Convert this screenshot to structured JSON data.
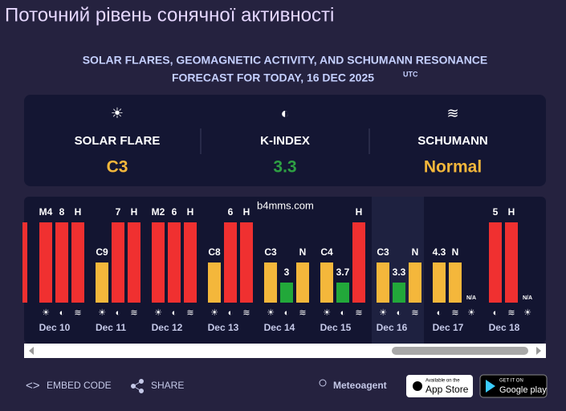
{
  "header": {
    "title": "Поточний рівень сонячної активності",
    "subtitle_line1": "SOLAR FLARES, GEOMAGNETIC ACTIVITY, AND SCHUMANN RESONANCE",
    "subtitle_line2": "FORECAST FOR TODAY, 16 DEC 2025",
    "subtitle_unit": "UTC"
  },
  "summary": [
    {
      "icon": "☀",
      "label": "SOLAR FLARE",
      "value": "C3",
      "color": "#f4b73b"
    },
    {
      "icon": "◐",
      "label": "K-INDEX",
      "value": "3.3",
      "color": "#2ea043"
    },
    {
      "icon": "≋",
      "label": "SCHUMANN",
      "value": "Normal",
      "color": "#f4b73b"
    }
  ],
  "watermark": "b4mms.com",
  "days": [
    {
      "date": "Dec 10",
      "bars": [
        {
          "label": "M4",
          "icon": "☀",
          "color": "#f03030"
        },
        {
          "label": "8",
          "icon": "◐",
          "color": "#f03030"
        },
        {
          "label": "H",
          "icon": "≋",
          "color": "#f03030"
        }
      ]
    },
    {
      "date": "Dec 11",
      "bars": [
        {
          "label": "C9",
          "icon": "☀",
          "color": "#f4b73b"
        },
        {
          "label": "7",
          "icon": "◐",
          "color": "#f03030"
        },
        {
          "label": "H",
          "icon": "≋",
          "color": "#f03030"
        }
      ]
    },
    {
      "date": "Dec 12",
      "bars": [
        {
          "label": "M2",
          "icon": "☀",
          "color": "#f03030"
        },
        {
          "label": "6",
          "icon": "◐",
          "color": "#f03030"
        },
        {
          "label": "H",
          "icon": "≋",
          "color": "#f03030"
        }
      ]
    },
    {
      "date": "Dec 13",
      "bars": [
        {
          "label": "C8",
          "icon": "☀",
          "color": "#f4b73b"
        },
        {
          "label": "6",
          "icon": "◐",
          "color": "#f03030"
        },
        {
          "label": "H",
          "icon": "≋",
          "color": "#f03030"
        }
      ]
    },
    {
      "date": "Dec 14",
      "bars": [
        {
          "label": "C3",
          "icon": "☀",
          "color": "#f4b73b"
        },
        {
          "label": "3",
          "icon": "◐",
          "color": "#22a83a"
        },
        {
          "label": "N",
          "icon": "≋",
          "color": "#f4b73b"
        }
      ]
    },
    {
      "date": "Dec 15",
      "bars": [
        {
          "label": "C4",
          "icon": "☀",
          "color": "#f4b73b"
        },
        {
          "label": "3.7",
          "icon": "◐",
          "color": "#22a83a"
        },
        {
          "label": "H",
          "icon": "≋",
          "color": "#f03030"
        }
      ]
    },
    {
      "date": "Dec 16",
      "bars": [
        {
          "label": "C3",
          "icon": "☀",
          "color": "#f4b73b"
        },
        {
          "label": "3.3",
          "icon": "◐",
          "color": "#22a83a"
        },
        {
          "label": "N",
          "icon": "≋",
          "color": "#f4b73b"
        }
      ]
    },
    {
      "date": "Dec 17",
      "bars": [
        {
          "label": "4.3",
          "icon": "◐",
          "color": "#f4b73b"
        },
        {
          "label": "N",
          "icon": "≋",
          "color": "#f4b73b"
        },
        {
          "label": "N/A",
          "icon": "☀",
          "color": null
        }
      ]
    },
    {
      "date": "Dec 18",
      "bars": [
        {
          "label": "5",
          "icon": "◐",
          "color": "#f03030"
        },
        {
          "label": "H",
          "icon": "≋",
          "color": "#f03030"
        },
        {
          "label": "N/A",
          "icon": "☀",
          "color": null
        }
      ]
    }
  ],
  "footer": {
    "embed": "EMBED CODE",
    "share": "SHARE",
    "brand": "Meteoagent",
    "appstore_small": "Available on the",
    "appstore": "App Store",
    "gplay_small": "GET IT ON",
    "gplay": "Google play"
  }
}
